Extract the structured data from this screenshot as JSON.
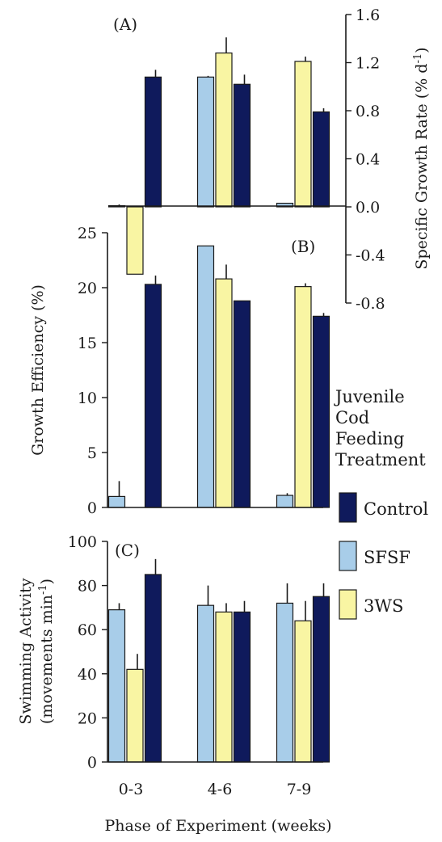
{
  "colors": {
    "Control": "#0f1a5c",
    "SFSF": "#a8cde9",
    "3WS": "#f9f5a3"
  },
  "legend": {
    "title_lines": [
      "Juvenile",
      "Cod",
      "Feeding",
      "Treatment"
    ],
    "items": [
      "Control",
      "SFSF",
      "3WS"
    ]
  },
  "x_axis": {
    "title": "Phase of Experiment (weeks)"
  },
  "chart_data": [
    {
      "type": "bar",
      "panel_label": "(A)",
      "ylabel": "Specific Growth Rate (% d",
      "ylabel_sup": "-1",
      "ylabel_end": ")",
      "ylim": [
        -0.8,
        1.6
      ],
      "ytick_labels": [
        "1.6",
        "1.2",
        "0.8",
        "0.4",
        "0.0",
        "-0.4",
        "-0.8"
      ],
      "categories": [
        "0-3",
        "4-6",
        "7-9"
      ],
      "series": [
        {
          "name": "SFSF",
          "values": [
            0.01,
            1.08,
            0.03
          ],
          "errors": [
            0.01,
            0.01,
            0.0
          ]
        },
        {
          "name": "3WS",
          "values": [
            -0.56,
            1.28,
            1.21
          ],
          "errors": [
            0.0,
            0.13,
            0.04
          ]
        },
        {
          "name": "Control",
          "values": [
            1.08,
            1.02,
            0.79
          ],
          "errors": [
            0.06,
            0.08,
            0.03
          ]
        }
      ]
    },
    {
      "type": "bar",
      "panel_label": "(B)",
      "ylabel": "Growth Efficiency (%)",
      "ylim": [
        0,
        25
      ],
      "ytick_labels": [
        "25",
        "20",
        "15",
        "10",
        "5",
        "0"
      ],
      "categories": [
        "0-3",
        "4-6",
        "7-9"
      ],
      "series": [
        {
          "name": "SFSF",
          "values": [
            1.0,
            23.8,
            1.1
          ],
          "errors": [
            1.4,
            0.0,
            0.2
          ]
        },
        {
          "name": "3WS",
          "values": [
            0,
            20.8,
            20.1
          ],
          "errors": [
            0,
            1.3,
            0.3
          ]
        },
        {
          "name": "Control",
          "values": [
            20.3,
            18.8,
            17.4
          ],
          "errors": [
            0.8,
            0.0,
            0.3
          ]
        }
      ]
    },
    {
      "type": "bar",
      "panel_label": "(C)",
      "ylabel_line1": "Swimming Activity",
      "ylabel_line2": "(movements  min",
      "ylabel_line2_sup": "-1",
      "ylabel_line2_end": ")",
      "ylim": [
        0,
        100
      ],
      "ytick_labels": [
        "100",
        "80",
        "60",
        "40",
        "20",
        "0"
      ],
      "categories": [
        "0-3",
        "4-6",
        "7-9"
      ],
      "series": [
        {
          "name": "SFSF",
          "values": [
            69,
            71,
            72
          ],
          "errors": [
            3,
            9,
            9
          ]
        },
        {
          "name": "3WS",
          "values": [
            42,
            68,
            64
          ],
          "errors": [
            7,
            4,
            9
          ]
        },
        {
          "name": "Control",
          "values": [
            85,
            68,
            75
          ],
          "errors": [
            7,
            5,
            6
          ]
        }
      ]
    }
  ]
}
